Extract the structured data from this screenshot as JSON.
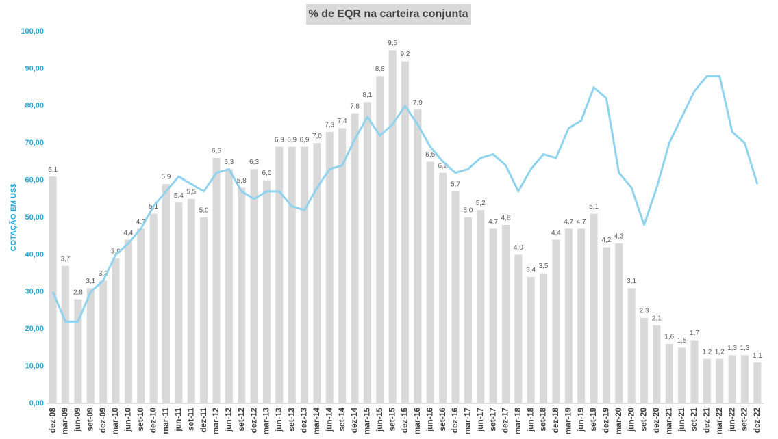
{
  "chart_data": {
    "type": "bar-line",
    "title": "% de EQR na carteira conjunta",
    "y_label": "COTAÇÃO EM US$",
    "categories": [
      "dez-08",
      "mar-09",
      "jun-09",
      "set-09",
      "dez-09",
      "mar-10",
      "jun-10",
      "set-10",
      "dez-10",
      "mar-11",
      "jun-11",
      "set-11",
      "dez-11",
      "mar-12",
      "jun-12",
      "set-12",
      "dez-12",
      "mar-13",
      "jun-13",
      "set-13",
      "dez-13",
      "mar-14",
      "jun-14",
      "set-14",
      "dez-14",
      "mar-15",
      "jun-15",
      "set-15",
      "dez-15",
      "mar-16",
      "jun-16",
      "set-16",
      "dez-16",
      "mar-17",
      "jun-17",
      "set-17",
      "dez-17",
      "mar-18",
      "jun-18",
      "set-18",
      "dez-18",
      "mar-19",
      "jun-19",
      "set-19",
      "dez-19",
      "mar-20",
      "jun-20",
      "set-20",
      "dez-20",
      "mar-21",
      "jun-21",
      "set-21",
      "dez-21",
      "mar-22",
      "jun-22",
      "set-22",
      "dez-22"
    ],
    "series": [
      {
        "type": "bar",
        "axis": "y2",
        "color": "#d9d9d9",
        "values": [
          6.1,
          3.7,
          2.8,
          3.1,
          3.3,
          3.9,
          4.4,
          4.7,
          5.1,
          5.9,
          5.4,
          5.5,
          5.0,
          6.6,
          6.3,
          5.8,
          6.3,
          6.0,
          6.9,
          6.9,
          6.9,
          7.0,
          7.3,
          7.4,
          7.8,
          8.1,
          8.8,
          9.5,
          9.2,
          7.9,
          6.5,
          6.2,
          5.7,
          5.0,
          5.2,
          4.7,
          4.8,
          4.0,
          3.4,
          3.5,
          4.4,
          4.7,
          4.7,
          5.1,
          4.2,
          4.3,
          3.1,
          2.3,
          2.1,
          1.6,
          1.5,
          1.7,
          1.2,
          1.2,
          1.3,
          1.3,
          1.1
        ],
        "value_labels": [
          "6,1",
          "3,7",
          "2,8",
          "3,1",
          "3,3",
          "3,9",
          "4,4",
          "4,7",
          "5,1",
          "5,9",
          "5,4",
          "5,5",
          "5,0",
          "6,6",
          "6,3",
          "5,8",
          "6,3",
          "6,0",
          "6,9",
          "6,9",
          "6,9",
          "7,0",
          "7,3",
          "7,4",
          "7,8",
          "8,1",
          "8,8",
          "9,5",
          "9,2",
          "7,9",
          "6,5",
          "6,2",
          "5,7",
          "5,0",
          "5,2",
          "4,7",
          "4,8",
          "4,0",
          "3,4",
          "3,5",
          "4,4",
          "4,7",
          "4,7",
          "5,1",
          "4,2",
          "4,3",
          "3,1",
          "2,3",
          "2,1",
          "1,6",
          "1,5",
          "1,7",
          "1,2",
          "1,2",
          "1,3",
          "1,3",
          "1,1"
        ]
      },
      {
        "type": "line",
        "color": "#8fd3ee",
        "values": [
          30,
          22,
          22,
          30,
          33,
          40,
          43,
          47,
          53,
          57,
          61,
          59,
          57,
          62,
          63,
          57,
          55,
          57,
          57,
          53,
          52,
          58,
          63,
          64,
          71,
          77,
          72,
          75,
          80,
          75,
          69,
          65,
          62,
          63,
          66,
          67,
          64,
          57,
          63,
          67,
          66,
          74,
          76,
          85,
          82,
          62,
          58,
          48,
          58,
          70,
          77,
          84,
          88,
          88,
          73,
          70,
          59
        ]
      }
    ],
    "ylim": [
      0,
      100
    ],
    "y2lim": [
      0,
      10
    ],
    "yticks": [
      {
        "value": 0,
        "label": "0,00"
      },
      {
        "value": 10,
        "label": "10,00"
      },
      {
        "value": 20,
        "label": "20,00"
      },
      {
        "value": 30,
        "label": "30,00"
      },
      {
        "value": 40,
        "label": "40,00"
      },
      {
        "value": 50,
        "label": "50,00"
      },
      {
        "value": 60,
        "label": "60,00"
      },
      {
        "value": 70,
        "label": "70,00"
      },
      {
        "value": 80,
        "label": "80,00"
      },
      {
        "value": 90,
        "label": "90,00"
      },
      {
        "value": 100,
        "label": "100,00"
      }
    ]
  }
}
